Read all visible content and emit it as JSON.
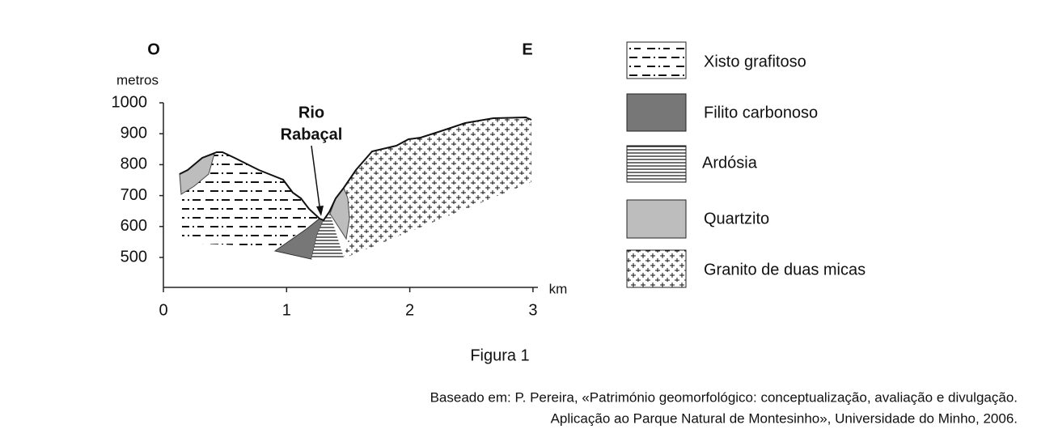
{
  "directions": {
    "west": "O",
    "east": "E"
  },
  "y_axis": {
    "unit": "metros",
    "ticks": [
      1000,
      900,
      800,
      700,
      600,
      500
    ]
  },
  "x_axis": {
    "unit": "km",
    "ticks": [
      0,
      1,
      2,
      3
    ]
  },
  "annotation": [
    "Rio",
    "Rabaçal"
  ],
  "legend": [
    "Xisto grafitoso",
    "Filito carbonoso",
    "Ardósia",
    "Quartzito",
    "Granito de duas micas"
  ],
  "caption": "Figura 1",
  "source": [
    "Baseado em: P. Pereira, «Património geomorfológico: conceptualização, avaliação e divulgação.",
    "Aplicação ao Parque Natural de Montesinho», Universidade do Minho, 2006."
  ]
}
